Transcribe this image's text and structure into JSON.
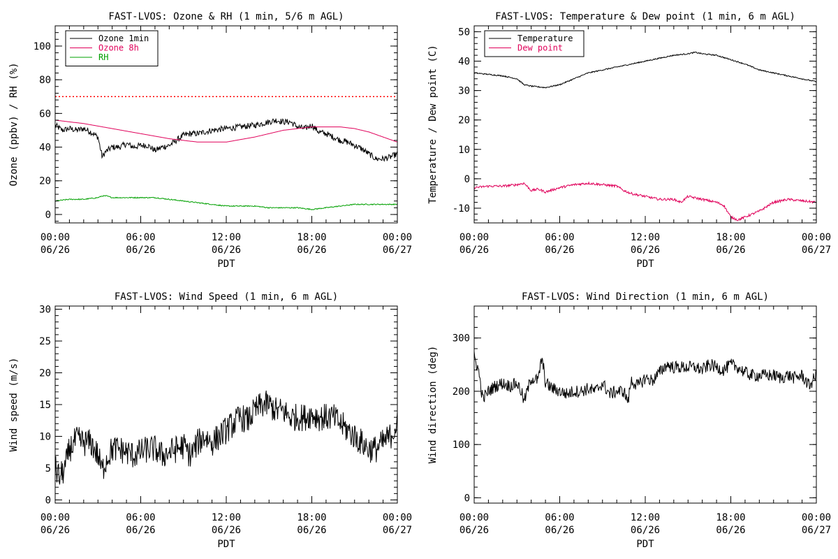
{
  "chart_data": [
    {
      "type": "line",
      "title": "FAST-LVOS: Ozone & RH (1 min, 5/6 m AGL)",
      "xlabel": "PDT",
      "ylabel": "Ozone (ppbv) / RH (%)",
      "xlim": [
        0,
        24
      ],
      "ylim": [
        -5,
        112
      ],
      "xticks": [
        {
          "x": 0,
          "time": "00:00",
          "date": "06/26"
        },
        {
          "x": 6,
          "time": "06:00",
          "date": "06/26"
        },
        {
          "x": 12,
          "time": "12:00",
          "date": "06/26"
        },
        {
          "x": 18,
          "time": "18:00",
          "date": "06/26"
        },
        {
          "x": 24,
          "time": "00:00",
          "date": "06/27"
        }
      ],
      "yticks": [
        0,
        20,
        40,
        60,
        80,
        100
      ],
      "legend": "top-left",
      "reference_line": {
        "y": 70,
        "color": "#ff0000",
        "style": "dotted"
      },
      "series": [
        {
          "name": "Ozone 1min",
          "color": "#000000",
          "noise": 1.8,
          "x": [
            0,
            0.5,
            1,
            1.5,
            2,
            2.5,
            3,
            3.3,
            3.5,
            4,
            4.5,
            5,
            5.5,
            6,
            6.5,
            7,
            7.5,
            8,
            8.5,
            9,
            9.5,
            10,
            11,
            12,
            13,
            14,
            15,
            15.5,
            16,
            16.5,
            17,
            17.5,
            18,
            18.5,
            19,
            19.5,
            20,
            20.5,
            21,
            21.5,
            22,
            22.5,
            23,
            23.5,
            24
          ],
          "y": [
            53,
            50,
            51,
            50,
            51,
            49,
            46,
            34,
            37,
            40,
            40,
            42,
            40,
            41,
            41,
            38,
            40,
            41,
            44,
            47,
            48,
            48,
            50,
            51,
            52,
            53,
            55,
            56,
            55,
            55,
            52,
            51,
            53,
            49,
            48,
            46,
            44,
            43,
            41,
            39,
            36,
            33,
            33,
            34,
            36
          ]
        },
        {
          "name": "Ozone 8h",
          "color": "#e0005a",
          "noise": 0,
          "x": [
            0,
            2,
            4,
            6,
            8,
            10,
            12,
            14,
            16,
            18,
            19,
            20,
            21,
            22,
            23,
            24
          ],
          "y": [
            56,
            54,
            51,
            48,
            45,
            43,
            43,
            46,
            50,
            52,
            52,
            52,
            51,
            49,
            46,
            43
          ]
        },
        {
          "name": "RH",
          "color": "#00a000",
          "noise": 0.3,
          "x": [
            0,
            1,
            2,
            3,
            3.3,
            3.6,
            4,
            5,
            6,
            7,
            8,
            9,
            10,
            11,
            12,
            13,
            14,
            15,
            16,
            17,
            18,
            19,
            20,
            21,
            22,
            23,
            24
          ],
          "y": [
            8,
            9,
            9,
            10,
            11,
            11,
            10,
            10,
            10,
            10,
            9,
            8,
            7,
            6,
            5,
            5,
            5,
            4,
            4,
            4,
            3,
            4,
            5,
            6,
            6,
            6,
            6
          ]
        }
      ]
    },
    {
      "type": "line",
      "title": "FAST-LVOS: Temperature & Dew point (1 min, 6 m AGL)",
      "xlabel": "PDT",
      "ylabel": "Temperature / Dew point (C)",
      "xlim": [
        0,
        24
      ],
      "ylim": [
        -15,
        52
      ],
      "xticks": [
        {
          "x": 0,
          "time": "00:00",
          "date": "06/26"
        },
        {
          "x": 6,
          "time": "06:00",
          "date": "06/26"
        },
        {
          "x": 12,
          "time": "12:00",
          "date": "06/26"
        },
        {
          "x": 18,
          "time": "18:00",
          "date": "06/26"
        },
        {
          "x": 24,
          "time": "00:00",
          "date": "06/27"
        }
      ],
      "yticks": [
        -10,
        0,
        10,
        20,
        30,
        40,
        50
      ],
      "legend": "top-left",
      "series": [
        {
          "name": "Temperature",
          "color": "#000000",
          "noise": 0.2,
          "x": [
            0,
            1,
            2,
            3,
            3.5,
            4,
            5,
            6,
            7,
            8,
            9,
            10,
            11,
            12,
            13,
            14,
            15,
            15.5,
            16,
            17,
            18,
            19,
            20,
            21,
            22,
            23,
            24
          ],
          "y": [
            36,
            35.5,
            35,
            34,
            32,
            31.5,
            31,
            32,
            34,
            36,
            37,
            38,
            39,
            40,
            41,
            42,
            42.5,
            43,
            42.5,
            42,
            40.5,
            39,
            37,
            36,
            35,
            34,
            33
          ]
        },
        {
          "name": "Dew point",
          "color": "#e0005a",
          "noise": 0.4,
          "x": [
            0,
            1,
            2,
            3,
            3.5,
            4,
            4.5,
            5,
            6,
            7,
            8,
            9,
            10,
            10.5,
            11,
            12,
            13,
            14,
            14.5,
            15,
            16,
            17,
            17.5,
            18,
            18.5,
            19,
            20,
            21,
            22,
            23,
            24
          ],
          "y": [
            -3,
            -2.5,
            -2.5,
            -2,
            -1.5,
            -4,
            -3.5,
            -4.5,
            -3,
            -2,
            -1.5,
            -2,
            -2.5,
            -4,
            -5,
            -6,
            -7,
            -7,
            -8,
            -6,
            -7,
            -8,
            -9,
            -13,
            -14,
            -13,
            -11,
            -8,
            -7,
            -7.5,
            -8
          ]
        }
      ]
    },
    {
      "type": "line",
      "title": "FAST-LVOS: Wind Speed (1 min, 6 m AGL)",
      "xlabel": "PDT",
      "ylabel": "Wind speed (m/s)",
      "xlim": [
        0,
        24
      ],
      "ylim": [
        -0.5,
        30.5
      ],
      "xticks": [
        {
          "x": 0,
          "time": "00:00",
          "date": "06/26"
        },
        {
          "x": 6,
          "time": "06:00",
          "date": "06/26"
        },
        {
          "x": 12,
          "time": "12:00",
          "date": "06/26"
        },
        {
          "x": 18,
          "time": "18:00",
          "date": "06/26"
        },
        {
          "x": 24,
          "time": "00:00",
          "date": "06/27"
        }
      ],
      "yticks": [
        0,
        5,
        10,
        15,
        20,
        25,
        30
      ],
      "legend": "none",
      "series": [
        {
          "name": "",
          "color": "#000000",
          "noise": 2.2,
          "x": [
            0,
            0.3,
            0.7,
            1,
            1.5,
            2,
            2.5,
            3,
            3.3,
            3.5,
            4,
            4.5,
            5,
            5.5,
            6,
            6.5,
            7,
            7.5,
            8,
            8.5,
            9,
            9.5,
            10,
            10.5,
            11,
            11.5,
            12,
            12.5,
            13,
            13.5,
            14,
            14.5,
            15,
            15.5,
            16,
            16.5,
            17,
            17.5,
            18,
            18.5,
            19,
            19.5,
            20,
            20.5,
            21,
            21.5,
            22,
            22.5,
            23,
            23.5,
            24
          ],
          "y": [
            5,
            3.5,
            5,
            8,
            9.5,
            9,
            9,
            7,
            4.5,
            6,
            8,
            8,
            7.5,
            7,
            7.5,
            8,
            8,
            7,
            7.5,
            8,
            8.5,
            7,
            9,
            10,
            9,
            10,
            11,
            12,
            13,
            12.5,
            14,
            15,
            15,
            14,
            14,
            13,
            13,
            13,
            13.5,
            13,
            13,
            13,
            12,
            11,
            10,
            9,
            8,
            8,
            9,
            10,
            12
          ]
        }
      ]
    },
    {
      "type": "line",
      "title": "FAST-LVOS: Wind Direction (1 min, 6 m AGL)",
      "xlabel": "PDT",
      "ylabel": "Wind direction (deg)",
      "xlim": [
        0,
        24
      ],
      "ylim": [
        -10,
        360
      ],
      "xticks": [
        {
          "x": 0,
          "time": "00:00",
          "date": "06/26"
        },
        {
          "x": 6,
          "time": "06:00",
          "date": "06/26"
        },
        {
          "x": 12,
          "time": "12:00",
          "date": "06/26"
        },
        {
          "x": 18,
          "time": "18:00",
          "date": "06/26"
        },
        {
          "x": 24,
          "time": "00:00",
          "date": "06/27"
        }
      ],
      "yticks": [
        0,
        100,
        200,
        300
      ],
      "legend": "none",
      "series": [
        {
          "name": "",
          "color": "#000000",
          "noise": 12,
          "x": [
            0,
            0.3,
            0.6,
            1,
            1.5,
            2,
            2.5,
            3,
            3.3,
            3.5,
            4,
            4.5,
            4.7,
            4.9,
            5,
            5.5,
            6,
            6.5,
            7,
            7.5,
            8,
            8.5,
            9,
            9.5,
            10,
            10.5,
            10.8,
            11,
            11.5,
            12,
            12.5,
            13,
            13.5,
            14,
            14.5,
            15,
            15.5,
            16,
            16.5,
            17,
            17.5,
            18,
            18.5,
            19,
            19.5,
            20,
            20.5,
            21,
            21.5,
            22,
            22.5,
            23,
            23.5,
            24
          ],
          "y": [
            265,
            240,
            185,
            200,
            210,
            215,
            210,
            215,
            200,
            180,
            225,
            220,
            260,
            240,
            215,
            205,
            200,
            195,
            200,
            200,
            205,
            200,
            215,
            195,
            200,
            200,
            180,
            220,
            210,
            225,
            220,
            235,
            250,
            245,
            245,
            245,
            245,
            240,
            250,
            245,
            240,
            250,
            245,
            235,
            230,
            230,
            230,
            230,
            225,
            230,
            225,
            230,
            210,
            230
          ]
        }
      ]
    }
  ]
}
